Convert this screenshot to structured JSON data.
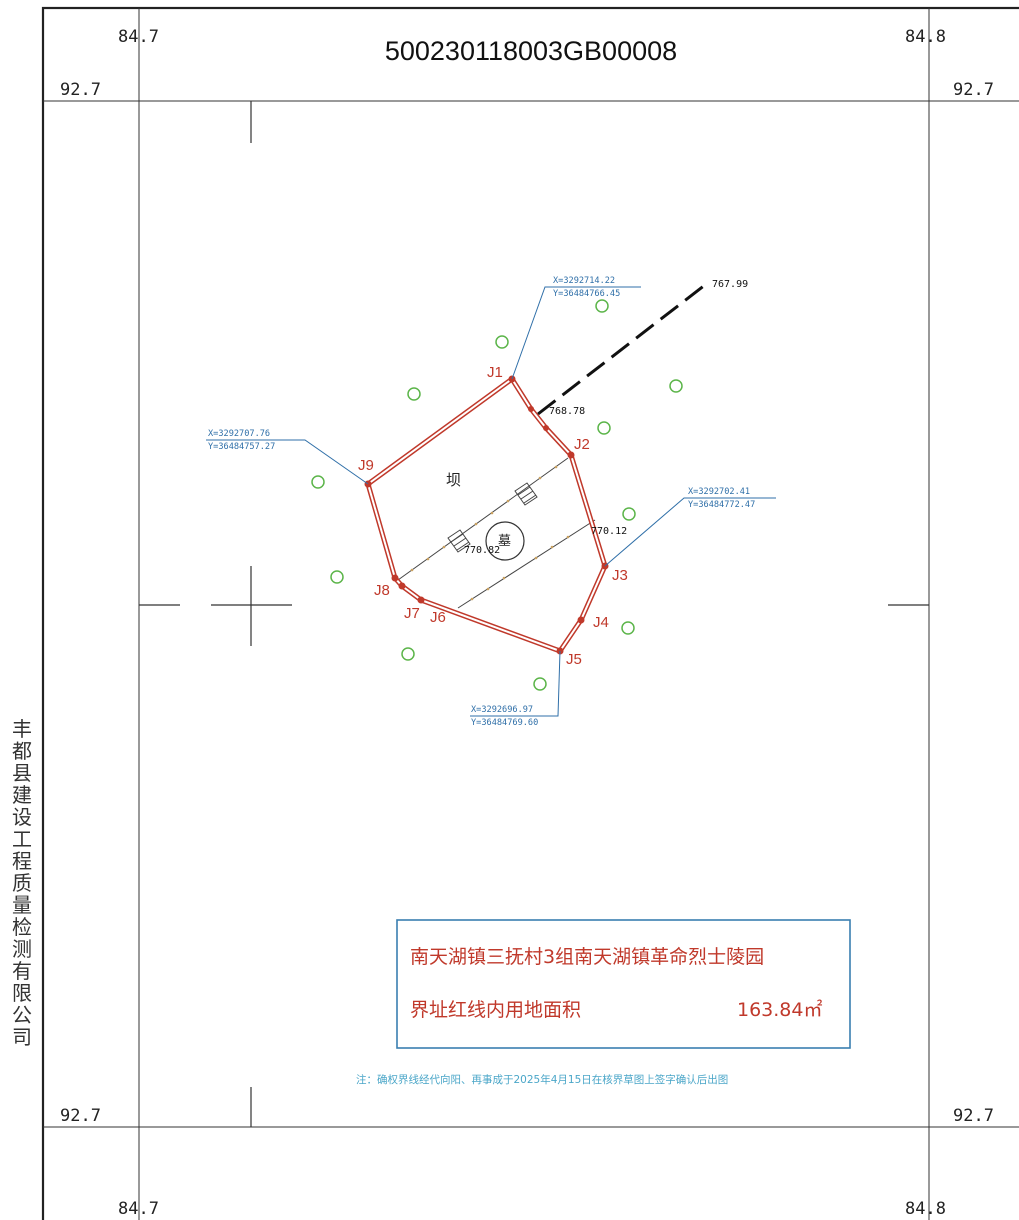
{
  "parcel_code": "500230118003GB00008",
  "grid_labels": {
    "top_left_x": "84.7",
    "top_right_x": "84.8",
    "bottom_left_x": "84.7",
    "bottom_right_x": "84.8",
    "left_top_y": "92.7",
    "right_top_y": "92.7",
    "left_bottom_y": "92.7",
    "right_bottom_y": "92.7"
  },
  "side_company": "丰都县建设工程质量检测有限公司",
  "points": {
    "J1": "J1",
    "J2": "J2",
    "J3": "J3",
    "J4": "J4",
    "J5": "J5",
    "J6": "J6",
    "J7": "J7",
    "J8": "J8",
    "J9": "J9"
  },
  "coord_callouts": {
    "j1": {
      "x": "X=3292714.22",
      "y": "Y=36484766.45"
    },
    "j9": {
      "x": "X=3292707.76",
      "y": "Y=36484757.27"
    },
    "j3": {
      "x": "X=3292702.41",
      "y": "Y=36484772.47"
    },
    "j5": {
      "x": "X=3292696.97",
      "y": "Y=36484769.60"
    }
  },
  "elevations": {
    "e1": "767.99",
    "e2": "768.78",
    "e3": "770.12",
    "e4": "770.82"
  },
  "feature_labels": {
    "dam": "坝",
    "tomb": "墓"
  },
  "info_box": {
    "location": "南天湖镇三抚村3组南天湖镇革命烈士陵园",
    "area_label": "界址红线内用地面积",
    "area_value": "163.84㎡"
  },
  "note": "注：确权界线经代向阳、再事成于2025年4月15日在核界草图上签字确认后出图",
  "colors": {
    "boundary": "#c0392b",
    "callout": "#2f6fa8",
    "tree": "#5cb54a",
    "frame": "#222222",
    "note": "#4aa6c8",
    "box_border": "#3a7fb0"
  }
}
